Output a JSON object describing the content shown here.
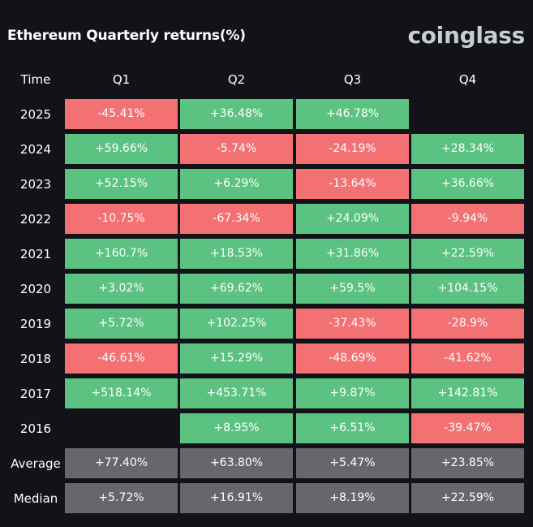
{
  "title": "Ethereum Quarterly returns(%)",
  "brand": "coinglass",
  "colors": {
    "background": "#111318",
    "positive": "#5cc281",
    "negative": "#f47173",
    "summary": "#66676b"
  },
  "chart_data": {
    "type": "table",
    "title": "Ethereum Quarterly returns(%)",
    "columns": [
      "Time",
      "Q1",
      "Q2",
      "Q3",
      "Q4"
    ],
    "rows": [
      {
        "label": "2025",
        "values": [
          "-45.41%",
          "+36.48%",
          "+46.78%",
          ""
        ]
      },
      {
        "label": "2024",
        "values": [
          "+59.66%",
          "-5.74%",
          "-24.19%",
          "+28.34%"
        ]
      },
      {
        "label": "2023",
        "values": [
          "+52.15%",
          "+6.29%",
          "-13.64%",
          "+36.66%"
        ]
      },
      {
        "label": "2022",
        "values": [
          "-10.75%",
          "-67.34%",
          "+24.09%",
          "-9.94%"
        ]
      },
      {
        "label": "2021",
        "values": [
          "+160.7%",
          "+18.53%",
          "+31.86%",
          "+22.59%"
        ]
      },
      {
        "label": "2020",
        "values": [
          "+3.02%",
          "+69.62%",
          "+59.5%",
          "+104.15%"
        ]
      },
      {
        "label": "2019",
        "values": [
          "+5.72%",
          "+102.25%",
          "-37.43%",
          "-28.9%"
        ]
      },
      {
        "label": "2018",
        "values": [
          "-46.61%",
          "+15.29%",
          "-48.69%",
          "-41.62%"
        ]
      },
      {
        "label": "2017",
        "values": [
          "+518.14%",
          "+453.71%",
          "+9.87%",
          "+142.81%"
        ]
      },
      {
        "label": "2016",
        "values": [
          "",
          "+8.95%",
          "+6.51%",
          "-39.47%"
        ]
      },
      {
        "label": "Average",
        "values": [
          "+77.40%",
          "+63.80%",
          "+5.47%",
          "+23.85%"
        ],
        "summary": true
      },
      {
        "label": "Median",
        "values": [
          "+5.72%",
          "+16.91%",
          "+8.19%",
          "+22.59%"
        ],
        "summary": true
      }
    ]
  }
}
